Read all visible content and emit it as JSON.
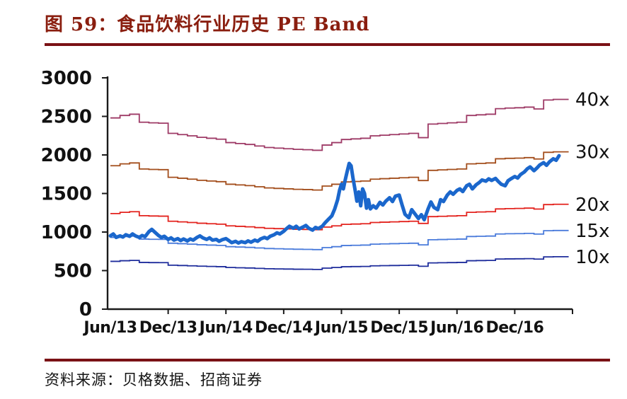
{
  "figure": {
    "title": "图 59：食品饮料行业历史 PE Band",
    "source": "资料来源：贝格数据、招商证券",
    "accent_color": "#8A1E0F",
    "rule_color": "#7A1115"
  },
  "chart_data": {
    "type": "line",
    "title": "食品饮料行业历史 PE Band",
    "xlabel": "",
    "ylabel": "",
    "ylim": [
      0,
      3000
    ],
    "y_ticks": [
      0,
      500,
      1000,
      1500,
      2000,
      2500,
      3000
    ],
    "x_months_span": 48,
    "x_tick_months": [
      6,
      12,
      18,
      24,
      30,
      36,
      42,
      48
    ],
    "x_tick_labels": [
      "Jun/13",
      "Dec/13",
      "Jun/14",
      "Dec/14",
      "Jun/15",
      "Dec/15",
      "Jun/16",
      "Dec/16"
    ],
    "x_label_months": [
      0,
      6,
      12,
      18,
      24,
      30,
      36,
      42
    ],
    "grid": false,
    "legend_position": "right-edge-labels",
    "axis_color": "#1a1a1a",
    "bands": {
      "multiples": [
        10,
        15,
        20,
        30,
        40
      ],
      "labels": [
        "10x",
        "15x",
        "20x",
        "30x",
        "40x"
      ],
      "colors": [
        "#1F2D9C",
        "#4A7BDB",
        "#E3231E",
        "#A34E1C",
        "#9E3A66"
      ],
      "base_monthly": [
        62.0,
        62.8,
        63.2,
        60.6,
        60.4,
        60.3,
        57.0,
        56.6,
        56.2,
        55.7,
        55.4,
        55.1,
        54.0,
        53.7,
        53.4,
        52.9,
        52.4,
        52.2,
        52.0,
        51.8,
        51.7,
        51.5,
        53.2,
        54.0,
        55.0,
        55.2,
        55.4,
        56.2,
        56.4,
        56.6,
        56.8,
        57.0,
        55.6,
        60.0,
        60.2,
        60.4,
        60.6,
        62.8,
        63.0,
        63.2,
        65.0,
        65.2,
        65.3,
        65.5,
        64.9,
        67.8,
        68.0,
        68.0
      ]
    },
    "price_series": {
      "color": "#1B67CC",
      "stroke_width": 5,
      "points": [
        [
          0,
          950
        ],
        [
          0.3,
          975
        ],
        [
          0.6,
          930
        ],
        [
          1,
          950
        ],
        [
          1.3,
          935
        ],
        [
          1.6,
          965
        ],
        [
          2,
          945
        ],
        [
          2.3,
          975
        ],
        [
          2.6,
          950
        ],
        [
          3,
          930
        ],
        [
          3.3,
          955
        ],
        [
          3.6,
          940
        ],
        [
          4,
          1005
        ],
        [
          4.3,
          1035
        ],
        [
          4.6,
          1000
        ],
        [
          5,
          955
        ],
        [
          5.3,
          930
        ],
        [
          5.6,
          945
        ],
        [
          6,
          905
        ],
        [
          6.3,
          925
        ],
        [
          6.6,
          895
        ],
        [
          7,
          915
        ],
        [
          7.3,
          890
        ],
        [
          7.6,
          910
        ],
        [
          8,
          885
        ],
        [
          8.3,
          910
        ],
        [
          8.6,
          895
        ],
        [
          9,
          930
        ],
        [
          9.3,
          950
        ],
        [
          9.6,
          925
        ],
        [
          10,
          905
        ],
        [
          10.3,
          925
        ],
        [
          10.6,
          895
        ],
        [
          11,
          905
        ],
        [
          11.3,
          880
        ],
        [
          11.6,
          900
        ],
        [
          12,
          915
        ],
        [
          12.3,
          890
        ],
        [
          12.6,
          862
        ],
        [
          13,
          880
        ],
        [
          13.3,
          858
        ],
        [
          13.6,
          875
        ],
        [
          14,
          862
        ],
        [
          14.3,
          885
        ],
        [
          14.6,
          868
        ],
        [
          15,
          895
        ],
        [
          15.3,
          880
        ],
        [
          15.6,
          910
        ],
        [
          16,
          930
        ],
        [
          16.3,
          915
        ],
        [
          16.6,
          945
        ],
        [
          17,
          965
        ],
        [
          17.3,
          990
        ],
        [
          17.6,
          975
        ],
        [
          18,
          1010
        ],
        [
          18.3,
          1045
        ],
        [
          18.6,
          1075
        ],
        [
          19,
          1050
        ],
        [
          19.3,
          1075
        ],
        [
          19.6,
          1040
        ],
        [
          20,
          1065
        ],
        [
          20.3,
          1085
        ],
        [
          20.6,
          1050
        ],
        [
          21,
          1025
        ],
        [
          21.3,
          1060
        ],
        [
          21.6,
          1045
        ],
        [
          22,
          1075
        ],
        [
          22.3,
          1120
        ],
        [
          22.6,
          1160
        ],
        [
          23,
          1210
        ],
        [
          23.3,
          1300
        ],
        [
          23.6,
          1420
        ],
        [
          23.8,
          1540
        ],
        [
          24,
          1620
        ],
        [
          24.2,
          1560
        ],
        [
          24.4,
          1680
        ],
        [
          24.6,
          1790
        ],
        [
          24.8,
          1890
        ],
        [
          25,
          1860
        ],
        [
          25.2,
          1700
        ],
        [
          25.4,
          1560
        ],
        [
          25.6,
          1400
        ],
        [
          25.8,
          1520
        ],
        [
          26,
          1340
        ],
        [
          26.2,
          1560
        ],
        [
          26.4,
          1500
        ],
        [
          26.6,
          1310
        ],
        [
          26.8,
          1420
        ],
        [
          27,
          1300
        ],
        [
          27.3,
          1340
        ],
        [
          27.6,
          1310
        ],
        [
          28,
          1385
        ],
        [
          28.3,
          1350
        ],
        [
          28.6,
          1400
        ],
        [
          29,
          1445
        ],
        [
          29.3,
          1395
        ],
        [
          29.6,
          1465
        ],
        [
          30,
          1480
        ],
        [
          30.3,
          1350
        ],
        [
          30.6,
          1230
        ],
        [
          31,
          1185
        ],
        [
          31.3,
          1290
        ],
        [
          31.6,
          1240
        ],
        [
          32,
          1175
        ],
        [
          32.3,
          1225
        ],
        [
          32.6,
          1160
        ],
        [
          33,
          1300
        ],
        [
          33.3,
          1390
        ],
        [
          33.6,
          1320
        ],
        [
          34,
          1290
        ],
        [
          34.3,
          1420
        ],
        [
          34.6,
          1395
        ],
        [
          35,
          1480
        ],
        [
          35.3,
          1520
        ],
        [
          35.6,
          1490
        ],
        [
          36,
          1540
        ],
        [
          36.3,
          1560
        ],
        [
          36.6,
          1525
        ],
        [
          37,
          1600
        ],
        [
          37.3,
          1620
        ],
        [
          37.6,
          1560
        ],
        [
          38,
          1615
        ],
        [
          38.3,
          1640
        ],
        [
          38.6,
          1675
        ],
        [
          39,
          1660
        ],
        [
          39.3,
          1690
        ],
        [
          39.6,
          1670
        ],
        [
          40,
          1695
        ],
        [
          40.3,
          1655
        ],
        [
          40.6,
          1620
        ],
        [
          41,
          1600
        ],
        [
          41.3,
          1665
        ],
        [
          41.6,
          1690
        ],
        [
          42,
          1720
        ],
        [
          42.3,
          1700
        ],
        [
          42.6,
          1745
        ],
        [
          43,
          1780
        ],
        [
          43.3,
          1820
        ],
        [
          43.6,
          1845
        ],
        [
          44,
          1795
        ],
        [
          44.3,
          1830
        ],
        [
          44.6,
          1870
        ],
        [
          45,
          1900
        ],
        [
          45.3,
          1865
        ],
        [
          45.6,
          1910
        ],
        [
          46,
          1950
        ],
        [
          46.3,
          1930
        ],
        [
          46.6,
          1990
        ]
      ]
    }
  }
}
